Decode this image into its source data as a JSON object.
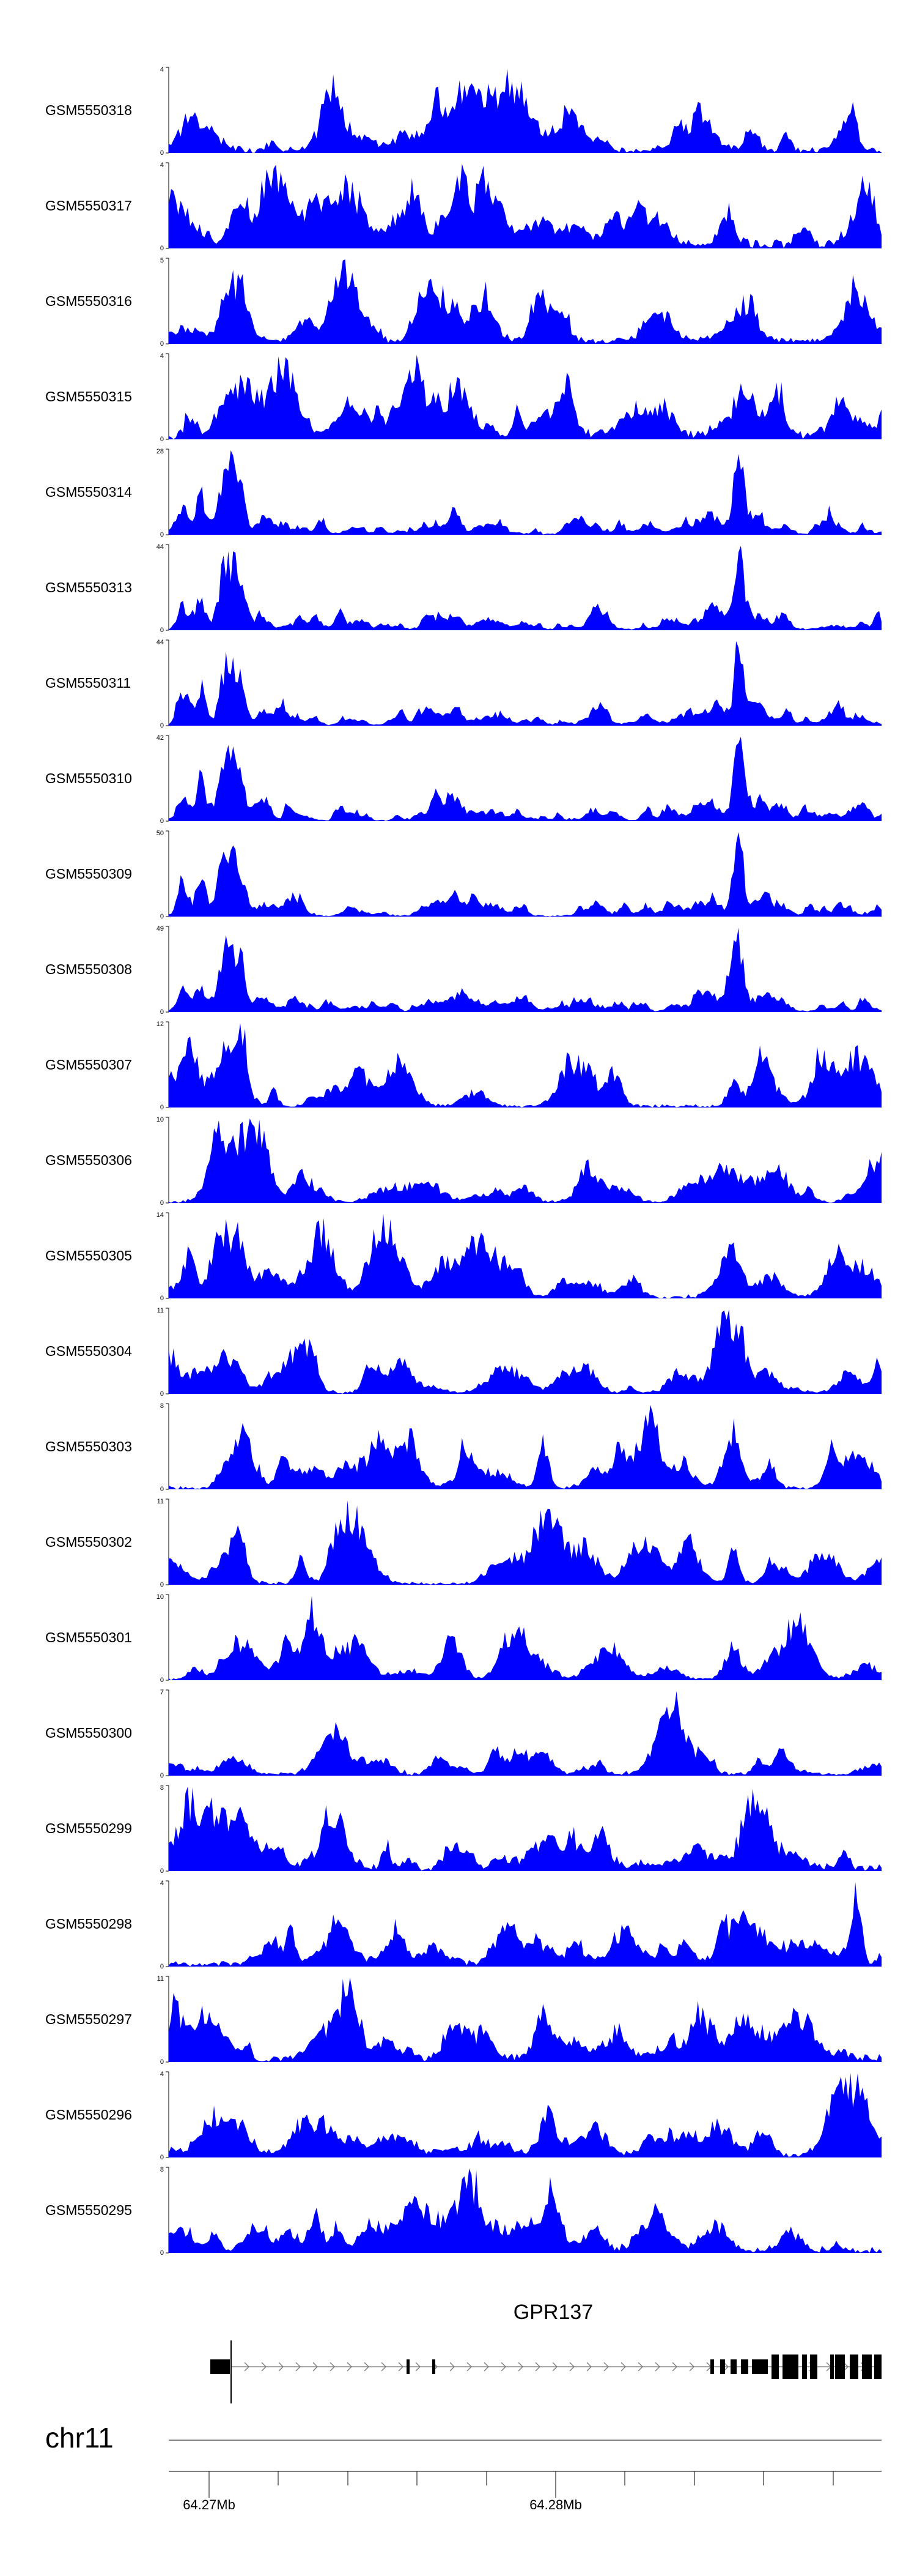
{
  "chart_data": {
    "type": "area",
    "genome": {
      "chromosome": "chr11",
      "axis_ticks": [
        "64.27Mb",
        "64.28Mb"
      ],
      "gene": "GPR137"
    },
    "fill_color": "#0000FF",
    "baseline_label": "0",
    "tracks": [
      {
        "sample": "GSM5550318",
        "ymax": 4,
        "profile": "uniform"
      },
      {
        "sample": "GSM5550317",
        "ymax": 4,
        "profile": "uniform"
      },
      {
        "sample": "GSM5550316",
        "ymax": 5,
        "profile": "uniform"
      },
      {
        "sample": "GSM5550315",
        "ymax": 4,
        "profile": "uniform"
      },
      {
        "sample": "GSM5550314",
        "ymax": 28,
        "profile": "twin-peak"
      },
      {
        "sample": "GSM5550313",
        "ymax": 44,
        "profile": "twin-peak"
      },
      {
        "sample": "GSM5550311",
        "ymax": 44,
        "profile": "twin-peak"
      },
      {
        "sample": "GSM5550310",
        "ymax": 42,
        "profile": "twin-peak"
      },
      {
        "sample": "GSM5550309",
        "ymax": 50,
        "profile": "twin-peak"
      },
      {
        "sample": "GSM5550308",
        "ymax": 49,
        "profile": "twin-peak"
      },
      {
        "sample": "GSM5550307",
        "ymax": 12,
        "profile": "mixed"
      },
      {
        "sample": "GSM5550306",
        "ymax": 10,
        "profile": "mixed"
      },
      {
        "sample": "GSM5550305",
        "ymax": 14,
        "profile": "mixed"
      },
      {
        "sample": "GSM5550304",
        "ymax": 11,
        "profile": "mixed"
      },
      {
        "sample": "GSM5550303",
        "ymax": 8,
        "profile": "mixed"
      },
      {
        "sample": "GSM5550302",
        "ymax": 11,
        "profile": "mixed"
      },
      {
        "sample": "GSM5550301",
        "ymax": 10,
        "profile": "mixed"
      },
      {
        "sample": "GSM5550300",
        "ymax": 7,
        "profile": "uniform"
      },
      {
        "sample": "GSM5550299",
        "ymax": 8,
        "profile": "uniform"
      },
      {
        "sample": "GSM5550298",
        "ymax": 4,
        "profile": "uniform"
      },
      {
        "sample": "GSM5550297",
        "ymax": 11,
        "profile": "uniform"
      },
      {
        "sample": "GSM5550296",
        "ymax": 4,
        "profile": "uniform"
      },
      {
        "sample": "GSM5550295",
        "ymax": 8,
        "profile": "uniform"
      }
    ]
  }
}
